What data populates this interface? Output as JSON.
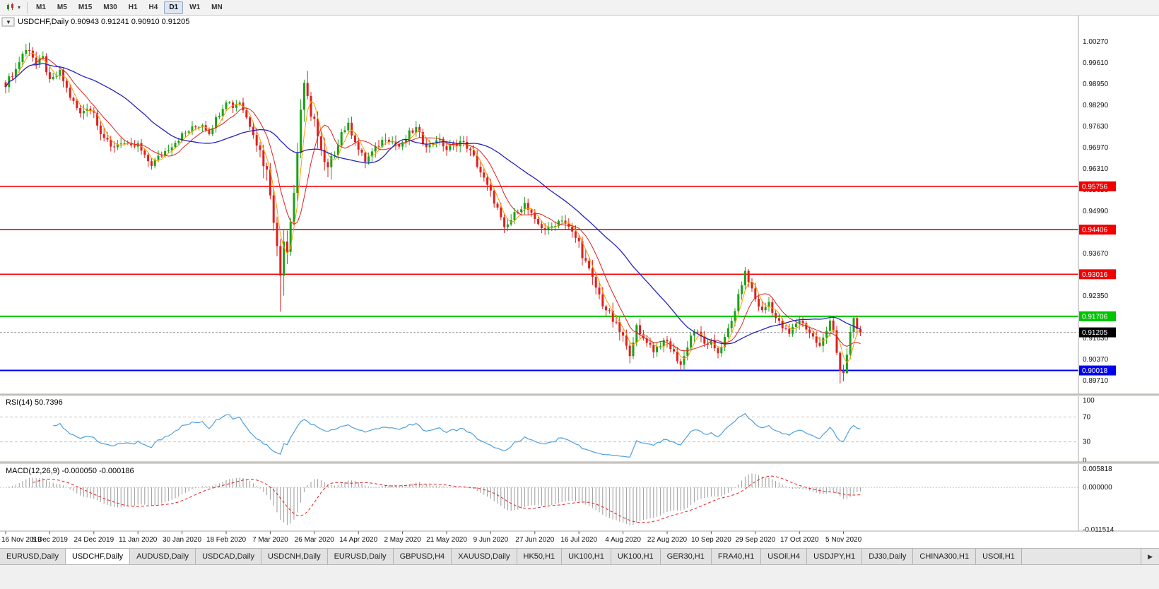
{
  "toolbar": {
    "timeframes": [
      "M1",
      "M5",
      "M15",
      "M30",
      "H1",
      "H4",
      "D1",
      "W1",
      "MN"
    ],
    "active_timeframe": "D1",
    "chart_type_caret": "▾"
  },
  "chart": {
    "title_line": "USDCHF,Daily 0.90943 0.91241 0.90910 0.91205",
    "one_click_arrow": "▼",
    "price_scale_labels": [
      "1.00270",
      "0.99610",
      "0.98950",
      "0.98290",
      "0.97630",
      "0.96970",
      "0.96310",
      "0.95650",
      "0.94990",
      "0.94330",
      "0.93670",
      "0.93010",
      "0.92350",
      "0.91690",
      "0.91030",
      "0.90370",
      "0.89710"
    ],
    "hlines": [
      {
        "label": "0.95756",
        "price": 0.95756,
        "color": "#f20000",
        "width": 1.6
      },
      {
        "label": "0.94406",
        "price": 0.94406,
        "color": "#f20000",
        "width": 1.6
      },
      {
        "label": "0.93016",
        "price": 0.93016,
        "color": "#f20000",
        "width": 1.6
      },
      {
        "label": "0.91706",
        "price": 0.91706,
        "color": "#00c400",
        "width": 2
      },
      {
        "label": "0.90018",
        "price": 0.90018,
        "color": "#0000f0",
        "width": 2
      }
    ],
    "current_price": {
      "label": "0.91205",
      "value": 0.91205,
      "line_color": "#9a9a9a",
      "badge_color": "#000000"
    }
  },
  "rsi_panel": {
    "title": "RSI(14) 50.7396",
    "scale_labels": [
      "100",
      "70",
      "30",
      "0"
    ],
    "levels": [
      70,
      30
    ]
  },
  "macd_panel": {
    "title": "MACD(12,26,9) -0.000050 -0.000186",
    "scale_labels": [
      "0.005818",
      "0.000000",
      "-0.011514"
    ]
  },
  "bottom_tabs": {
    "tabs": [
      "EURUSD,Daily",
      "USDCHF,Daily",
      "AUDUSD,Daily",
      "USDCAD,Daily",
      "USDCNH,Daily",
      "EURUSD,Daily",
      "GBPUSD,H4",
      "XAUUSD,Daily",
      "HK50,H1",
      "UK100,H1",
      "UK100,H1",
      "GER30,H1",
      "FRA40,H1",
      "USOil,H4",
      "USDJPY,H1",
      "DJ30,Daily",
      "CHINA300,H1",
      "USOil,H1"
    ],
    "active_index": 1,
    "scroll_right": "▶"
  },
  "chart_data": {
    "type": "candlestick",
    "symbol": "USDCHF",
    "timeframe": "Daily",
    "open": 0.90943,
    "high": 0.91241,
    "low": 0.9091,
    "close": 0.91205,
    "y_range": [
      0.8937,
      1.0077
    ],
    "candles_count": 253,
    "x_labels": [
      "16 Nov 2019",
      "5 Dec 2019",
      "24 Dec 2019",
      "11 Jan 2020",
      "30 Jan 2020",
      "18 Feb 2020",
      "7 Mar 2020",
      "26 Mar 2020",
      "14 Apr 2020",
      "2 May 2020",
      "21 May 2020",
      "9 Jun 2020",
      "27 Jun 2020",
      "16 Jul 2020",
      "4 Aug 2020",
      "22 Aug 2020",
      "10 Sep 2020",
      "29 Sep 2020",
      "17 Oct 2020",
      "5 Nov 2020"
    ],
    "x_label_step": 13,
    "price_anchors": [
      [
        0,
        0.9895
      ],
      [
        3,
        0.994
      ],
      [
        5,
        0.999
      ],
      [
        7,
        1.0005
      ],
      [
        9,
        0.9955
      ],
      [
        11,
        0.9975
      ],
      [
        13,
        0.99
      ],
      [
        16,
        0.993
      ],
      [
        19,
        0.9855
      ],
      [
        22,
        0.98
      ],
      [
        24,
        0.9825
      ],
      [
        26,
        0.9805
      ],
      [
        28,
        0.9745
      ],
      [
        31,
        0.9695
      ],
      [
        34,
        0.9715
      ],
      [
        37,
        0.9695
      ],
      [
        39,
        0.9705
      ],
      [
        41,
        0.9665
      ],
      [
        43,
        0.9645
      ],
      [
        46,
        0.9675
      ],
      [
        49,
        0.9705
      ],
      [
        52,
        0.9735
      ],
      [
        55,
        0.9755
      ],
      [
        58,
        0.977
      ],
      [
        60,
        0.9745
      ],
      [
        63,
        0.9805
      ],
      [
        65,
        0.9845
      ],
      [
        67,
        0.9825
      ],
      [
        69,
        0.984
      ],
      [
        71,
        0.979
      ],
      [
        73,
        0.9745
      ],
      [
        75,
        0.9685
      ],
      [
        77,
        0.962
      ],
      [
        78,
        0.956
      ],
      [
        79,
        0.948
      ],
      [
        80,
        0.938
      ],
      [
        81,
        0.93
      ],
      [
        82,
        0.942
      ],
      [
        83,
        0.938
      ],
      [
        84,
        0.948
      ],
      [
        85,
        0.956
      ],
      [
        86,
        0.968
      ],
      [
        87,
        0.982
      ],
      [
        88,
        0.99
      ],
      [
        89,
        0.984
      ],
      [
        90,
        0.978
      ],
      [
        91,
        0.98
      ],
      [
        92,
        0.973
      ],
      [
        93,
        0.968
      ],
      [
        94,
        0.964
      ],
      [
        95,
        0.9625
      ],
      [
        97,
        0.968
      ],
      [
        99,
        0.9745
      ],
      [
        101,
        0.9765
      ],
      [
        103,
        0.972
      ],
      [
        104,
        0.969
      ],
      [
        106,
        0.9655
      ],
      [
        108,
        0.968
      ],
      [
        110,
        0.9705
      ],
      [
        112,
        0.973
      ],
      [
        114,
        0.9715
      ],
      [
        116,
        0.97
      ],
      [
        117,
        0.9705
      ],
      [
        119,
        0.974
      ],
      [
        121,
        0.9755
      ],
      [
        123,
        0.9715
      ],
      [
        125,
        0.97
      ],
      [
        127,
        0.9725
      ],
      [
        129,
        0.9705
      ],
      [
        130,
        0.969
      ],
      [
        132,
        0.9705
      ],
      [
        134,
        0.9715
      ],
      [
        136,
        0.97
      ],
      [
        138,
        0.9665
      ],
      [
        140,
        0.962
      ],
      [
        142,
        0.9575
      ],
      [
        143,
        0.9555
      ],
      [
        145,
        0.9505
      ],
      [
        147,
        0.944
      ],
      [
        149,
        0.947
      ],
      [
        151,
        0.9505
      ],
      [
        153,
        0.952
      ],
      [
        155,
        0.9485
      ],
      [
        156,
        0.9465
      ],
      [
        158,
        0.945
      ],
      [
        160,
        0.944
      ],
      [
        162,
        0.946
      ],
      [
        164,
        0.9475
      ],
      [
        166,
        0.9445
      ],
      [
        168,
        0.9415
      ],
      [
        169,
        0.94
      ],
      [
        170,
        0.9365
      ],
      [
        172,
        0.931
      ],
      [
        174,
        0.926
      ],
      [
        176,
        0.921
      ],
      [
        178,
        0.9175
      ],
      [
        180,
        0.914
      ],
      [
        182,
        0.9105
      ],
      [
        183,
        0.907
      ],
      [
        184,
        0.906
      ],
      [
        185,
        0.91
      ],
      [
        186,
        0.9135
      ],
      [
        187,
        0.911
      ],
      [
        189,
        0.9095
      ],
      [
        191,
        0.9065
      ],
      [
        193,
        0.9085
      ],
      [
        195,
        0.909
      ],
      [
        197,
        0.9055
      ],
      [
        199,
        0.902
      ],
      [
        200,
        0.9045
      ],
      [
        201,
        0.908
      ],
      [
        202,
        0.911
      ],
      [
        203,
        0.9125
      ],
      [
        205,
        0.9105
      ],
      [
        207,
        0.9075
      ],
      [
        208,
        0.9085
      ],
      [
        210,
        0.906
      ],
      [
        212,
        0.91
      ],
      [
        214,
        0.9155
      ],
      [
        216,
        0.923
      ],
      [
        217,
        0.9275
      ],
      [
        218,
        0.9305
      ],
      [
        219,
        0.928
      ],
      [
        220,
        0.9255
      ],
      [
        221,
        0.9225
      ],
      [
        223,
        0.9185
      ],
      [
        225,
        0.9215
      ],
      [
        227,
        0.9165
      ],
      [
        229,
        0.9135
      ],
      [
        231,
        0.9115
      ],
      [
        233,
        0.915
      ],
      [
        234,
        0.916
      ],
      [
        236,
        0.9135
      ],
      [
        238,
        0.9105
      ],
      [
        240,
        0.9075
      ],
      [
        242,
        0.9125
      ],
      [
        243,
        0.9165
      ],
      [
        244,
        0.913
      ],
      [
        245,
        0.906
      ],
      [
        246,
        0.8995
      ],
      [
        247,
        0.8985
      ],
      [
        248,
        0.905
      ],
      [
        249,
        0.912
      ],
      [
        250,
        0.916
      ],
      [
        251,
        0.9135
      ],
      [
        252,
        0.91205
      ]
    ],
    "special_lows": {
      "81": 0.9185,
      "82": 0.9235,
      "246": 0.8961,
      "247": 0.8968
    },
    "special_highs": {
      "7": 1.0023,
      "88": 0.9908,
      "250": 0.9171
    },
    "colors": {
      "bull": "#18a318",
      "bear": "#e01f1f",
      "histogram": "#9a9a9a",
      "signal": "#e01f1f",
      "rsi": "#4e9fdd"
    },
    "moving_averages": [
      {
        "name": "MA fast",
        "period": 4,
        "color": "#ff9c00",
        "width": 1
      },
      {
        "name": "MA mid",
        "period": 9,
        "color": "#e01f1f",
        "width": 1
      },
      {
        "name": "MA slow",
        "period": 32,
        "color": "#2222bb",
        "width": 1.3
      }
    ],
    "rsi": {
      "period": 14,
      "value": 50.7396,
      "levels": [
        70,
        30
      ],
      "range": [
        0,
        100
      ]
    },
    "macd": {
      "fast": 12,
      "slow": 26,
      "signal": 9,
      "macd_value": -5e-05,
      "signal_value": -0.000186,
      "range": [
        -0.011514,
        0.005818
      ]
    }
  }
}
